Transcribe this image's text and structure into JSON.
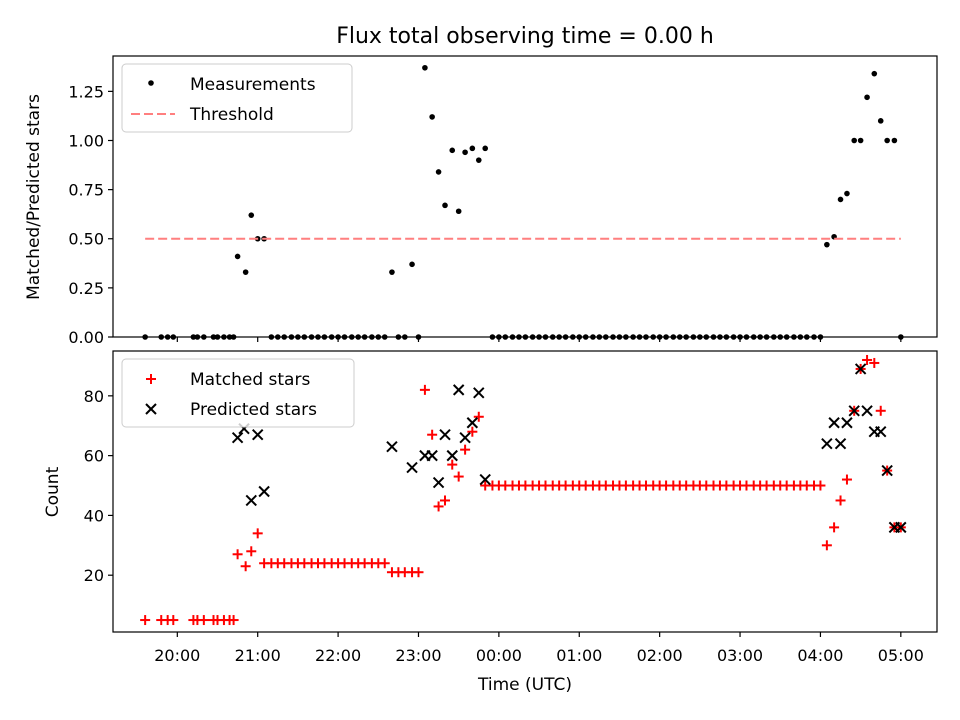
{
  "chart_data": [
    {
      "type": "scatter",
      "title": "Flux total observing time = 0.00 h",
      "xlabel": "",
      "ylabel": "Matched/Predicted stars",
      "x_unit": "time UTC (hours, values past 24 are after midnight)",
      "xlim": [
        19.2,
        29.45
      ],
      "ylim": [
        0,
        1.43
      ],
      "yticks": [
        "0.00",
        "0.25",
        "0.50",
        "0.75",
        "1.00",
        "1.25"
      ],
      "legend": {
        "placement": "top-left",
        "entries": [
          "Measurements",
          "Threshold"
        ]
      },
      "series": [
        {
          "name": "Measurements",
          "color": "#000000",
          "marker": "dot",
          "points": [
            [
              19.6,
              0
            ],
            [
              19.8,
              0
            ],
            [
              19.88,
              0
            ],
            [
              19.95,
              0
            ],
            [
              20.2,
              0
            ],
            [
              20.25,
              0
            ],
            [
              20.33,
              0
            ],
            [
              20.45,
              0
            ],
            [
              20.5,
              0
            ],
            [
              20.58,
              0
            ],
            [
              20.65,
              0
            ],
            [
              20.7,
              0
            ],
            [
              20.75,
              0.41
            ],
            [
              20.85,
              0.33
            ],
            [
              20.92,
              0.62
            ],
            [
              21.0,
              0.5
            ],
            [
              21.08,
              0.5
            ],
            [
              21.17,
              0
            ],
            [
              21.25,
              0
            ],
            [
              21.33,
              0
            ],
            [
              21.42,
              0
            ],
            [
              21.5,
              0
            ],
            [
              21.58,
              0
            ],
            [
              21.67,
              0
            ],
            [
              21.75,
              0
            ],
            [
              21.83,
              0
            ],
            [
              21.92,
              0
            ],
            [
              22.0,
              0
            ],
            [
              22.08,
              0
            ],
            [
              22.17,
              0
            ],
            [
              22.25,
              0
            ],
            [
              22.33,
              0
            ],
            [
              22.42,
              0
            ],
            [
              22.5,
              0
            ],
            [
              22.58,
              0
            ],
            [
              22.67,
              0.33
            ],
            [
              22.75,
              0
            ],
            [
              22.83,
              0
            ],
            [
              22.92,
              0.37
            ],
            [
              23.0,
              0
            ],
            [
              23.08,
              1.37
            ],
            [
              23.17,
              1.12
            ],
            [
              23.25,
              0.84
            ],
            [
              23.33,
              0.67
            ],
            [
              23.42,
              0.95
            ],
            [
              23.5,
              0.64
            ],
            [
              23.58,
              0.94
            ],
            [
              23.67,
              0.96
            ],
            [
              23.75,
              0.9
            ],
            [
              23.83,
              0.96
            ],
            [
              23.92,
              0
            ],
            [
              24.0,
              0
            ],
            [
              24.08,
              0
            ],
            [
              24.17,
              0
            ],
            [
              24.25,
              0
            ],
            [
              24.33,
              0
            ],
            [
              24.42,
              0
            ],
            [
              24.5,
              0
            ],
            [
              24.58,
              0
            ],
            [
              24.67,
              0
            ],
            [
              24.75,
              0
            ],
            [
              24.83,
              0
            ],
            [
              24.92,
              0
            ],
            [
              25.0,
              0
            ],
            [
              25.08,
              0
            ],
            [
              25.17,
              0
            ],
            [
              25.25,
              0
            ],
            [
              25.33,
              0
            ],
            [
              25.42,
              0
            ],
            [
              25.5,
              0
            ],
            [
              25.58,
              0
            ],
            [
              25.67,
              0
            ],
            [
              25.75,
              0
            ],
            [
              25.83,
              0
            ],
            [
              25.92,
              0
            ],
            [
              26.0,
              0
            ],
            [
              26.08,
              0
            ],
            [
              26.17,
              0
            ],
            [
              26.25,
              0
            ],
            [
              26.33,
              0
            ],
            [
              26.42,
              0
            ],
            [
              26.5,
              0
            ],
            [
              26.58,
              0
            ],
            [
              26.67,
              0
            ],
            [
              26.75,
              0
            ],
            [
              26.83,
              0
            ],
            [
              26.92,
              0
            ],
            [
              27.0,
              0
            ],
            [
              27.08,
              0
            ],
            [
              27.17,
              0
            ],
            [
              27.25,
              0
            ],
            [
              27.33,
              0
            ],
            [
              27.42,
              0
            ],
            [
              27.5,
              0
            ],
            [
              27.58,
              0
            ],
            [
              27.67,
              0
            ],
            [
              27.75,
              0
            ],
            [
              27.83,
              0
            ],
            [
              27.92,
              0
            ],
            [
              28.0,
              0
            ],
            [
              28.08,
              0.47
            ],
            [
              28.17,
              0.51
            ],
            [
              28.25,
              0.7
            ],
            [
              28.33,
              0.73
            ],
            [
              28.42,
              1.0
            ],
            [
              28.5,
              1.0
            ],
            [
              28.58,
              1.22
            ],
            [
              28.67,
              1.34
            ],
            [
              28.75,
              1.1
            ],
            [
              28.83,
              1.0
            ],
            [
              28.92,
              1.0
            ],
            [
              29.0,
              0
            ]
          ]
        },
        {
          "name": "Threshold",
          "color": "#ff7f7f",
          "style": "dashed",
          "points": [
            [
              19.6,
              0.5
            ],
            [
              29.0,
              0.5
            ]
          ]
        }
      ]
    },
    {
      "type": "scatter",
      "title": "",
      "xlabel": "Time (UTC)",
      "ylabel": "Count",
      "x_unit": "time UTC (hours, values past 24 are after midnight)",
      "xlim": [
        19.2,
        29.45
      ],
      "ylim": [
        1,
        95
      ],
      "yticks": [
        "20",
        "40",
        "60",
        "80"
      ],
      "xticks": [
        "20:00",
        "21:00",
        "22:00",
        "23:00",
        "00:00",
        "01:00",
        "02:00",
        "03:00",
        "04:00",
        "05:00"
      ],
      "legend": {
        "placement": "top-left",
        "entries": [
          "Matched stars",
          "Predicted stars"
        ]
      },
      "series": [
        {
          "name": "Matched stars",
          "color": "#ff0000",
          "marker": "plus",
          "points": [
            [
              19.6,
              5
            ],
            [
              19.8,
              5
            ],
            [
              19.88,
              5
            ],
            [
              19.95,
              5
            ],
            [
              20.2,
              5
            ],
            [
              20.25,
              5
            ],
            [
              20.33,
              5
            ],
            [
              20.45,
              5
            ],
            [
              20.5,
              5
            ],
            [
              20.58,
              5
            ],
            [
              20.65,
              5
            ],
            [
              20.7,
              5
            ],
            [
              20.75,
              27
            ],
            [
              20.85,
              23
            ],
            [
              20.92,
              28
            ],
            [
              21.0,
              34
            ],
            [
              21.08,
              24
            ],
            [
              21.17,
              24
            ],
            [
              21.25,
              24
            ],
            [
              21.33,
              24
            ],
            [
              21.42,
              24
            ],
            [
              21.5,
              24
            ],
            [
              21.58,
              24
            ],
            [
              21.67,
              24
            ],
            [
              21.75,
              24
            ],
            [
              21.83,
              24
            ],
            [
              21.92,
              24
            ],
            [
              22.0,
              24
            ],
            [
              22.08,
              24
            ],
            [
              22.17,
              24
            ],
            [
              22.25,
              24
            ],
            [
              22.33,
              24
            ],
            [
              22.42,
              24
            ],
            [
              22.5,
              24
            ],
            [
              22.58,
              24
            ],
            [
              22.67,
              21
            ],
            [
              22.75,
              21
            ],
            [
              22.83,
              21
            ],
            [
              22.92,
              21
            ],
            [
              23.0,
              21
            ],
            [
              23.08,
              82
            ],
            [
              23.17,
              67
            ],
            [
              23.25,
              43
            ],
            [
              23.33,
              45
            ],
            [
              23.42,
              57
            ],
            [
              23.5,
              53
            ],
            [
              23.58,
              62
            ],
            [
              23.67,
              68
            ],
            [
              23.75,
              73
            ],
            [
              23.83,
              50
            ],
            [
              23.92,
              50
            ],
            [
              24.0,
              50
            ],
            [
              24.08,
              50
            ],
            [
              24.17,
              50
            ],
            [
              24.25,
              50
            ],
            [
              24.33,
              50
            ],
            [
              24.42,
              50
            ],
            [
              24.5,
              50
            ],
            [
              24.58,
              50
            ],
            [
              24.67,
              50
            ],
            [
              24.75,
              50
            ],
            [
              24.83,
              50
            ],
            [
              24.92,
              50
            ],
            [
              25.0,
              50
            ],
            [
              25.08,
              50
            ],
            [
              25.17,
              50
            ],
            [
              25.25,
              50
            ],
            [
              25.33,
              50
            ],
            [
              25.42,
              50
            ],
            [
              25.5,
              50
            ],
            [
              25.58,
              50
            ],
            [
              25.67,
              50
            ],
            [
              25.75,
              50
            ],
            [
              25.83,
              50
            ],
            [
              25.92,
              50
            ],
            [
              26.0,
              50
            ],
            [
              26.08,
              50
            ],
            [
              26.17,
              50
            ],
            [
              26.25,
              50
            ],
            [
              26.33,
              50
            ],
            [
              26.42,
              50
            ],
            [
              26.5,
              50
            ],
            [
              26.58,
              50
            ],
            [
              26.67,
              50
            ],
            [
              26.75,
              50
            ],
            [
              26.83,
              50
            ],
            [
              26.92,
              50
            ],
            [
              27.0,
              50
            ],
            [
              27.08,
              50
            ],
            [
              27.17,
              50
            ],
            [
              27.25,
              50
            ],
            [
              27.33,
              50
            ],
            [
              27.42,
              50
            ],
            [
              27.5,
              50
            ],
            [
              27.58,
              50
            ],
            [
              27.67,
              50
            ],
            [
              27.75,
              50
            ],
            [
              27.83,
              50
            ],
            [
              27.92,
              50
            ],
            [
              28.0,
              50
            ],
            [
              28.08,
              30
            ],
            [
              28.17,
              36
            ],
            [
              28.25,
              45
            ],
            [
              28.33,
              52
            ],
            [
              28.42,
              75
            ],
            [
              28.5,
              89
            ],
            [
              28.58,
              92
            ],
            [
              28.67,
              91
            ],
            [
              28.75,
              75
            ],
            [
              28.83,
              55
            ],
            [
              28.92,
              36
            ],
            [
              29.0,
              36
            ]
          ]
        },
        {
          "name": "Predicted stars",
          "color": "#000000",
          "marker": "x",
          "points": [
            [
              20.75,
              66
            ],
            [
              20.83,
              69
            ],
            [
              20.92,
              45
            ],
            [
              21.0,
              67
            ],
            [
              21.08,
              48
            ],
            [
              22.67,
              63
            ],
            [
              22.92,
              56
            ],
            [
              23.08,
              60
            ],
            [
              23.17,
              60
            ],
            [
              23.25,
              51
            ],
            [
              23.33,
              67
            ],
            [
              23.42,
              60
            ],
            [
              23.5,
              82
            ],
            [
              23.58,
              66
            ],
            [
              23.67,
              71
            ],
            [
              23.75,
              81
            ],
            [
              23.83,
              52
            ],
            [
              28.08,
              64
            ],
            [
              28.17,
              71
            ],
            [
              28.25,
              64
            ],
            [
              28.33,
              71
            ],
            [
              28.42,
              75
            ],
            [
              28.5,
              89
            ],
            [
              28.58,
              75
            ],
            [
              28.67,
              68
            ],
            [
              28.75,
              68
            ],
            [
              28.83,
              55
            ],
            [
              28.92,
              36
            ],
            [
              29.0,
              36
            ]
          ]
        }
      ]
    }
  ]
}
